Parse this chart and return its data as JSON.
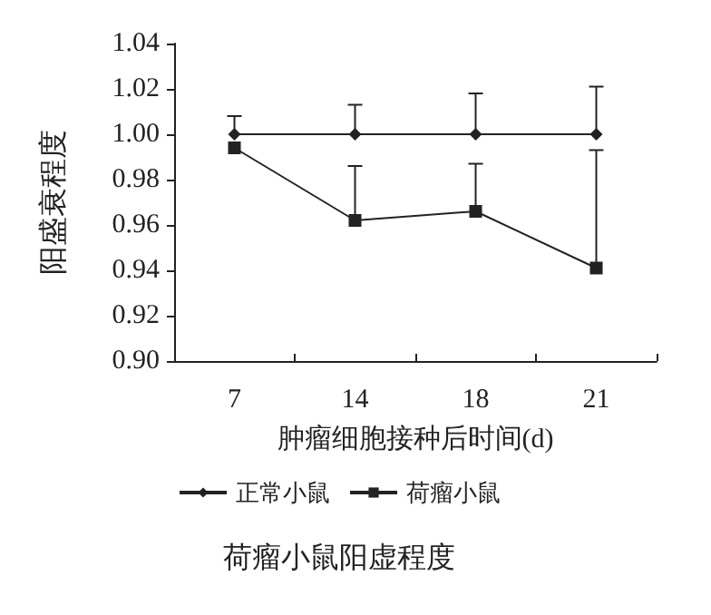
{
  "chart_data": {
    "type": "line",
    "title": "荷瘤小鼠阳虚程度",
    "xlabel": "肿瘤细胞接种后时间(d)",
    "ylabel": "阳盛衰程度",
    "categories": [
      "7",
      "14",
      "18",
      "21"
    ],
    "series": [
      {
        "name": "正常小鼠",
        "color": "#222222",
        "marker": "diamond",
        "values": [
          1.0,
          1.0,
          1.0,
          1.0
        ],
        "errors": [
          [
            1.0,
            1.008
          ],
          [
            1.0,
            1.013
          ],
          [
            1.0,
            1.018
          ],
          [
            1.0,
            1.021
          ]
        ]
      },
      {
        "name": "荷瘤小鼠",
        "color": "#222222",
        "marker": "square",
        "values": [
          0.994,
          0.962,
          0.966,
          0.941
        ],
        "errors": [
          null,
          [
            0.962,
            0.986
          ],
          [
            0.966,
            0.987
          ],
          [
            0.941,
            0.993
          ]
        ]
      }
    ],
    "ylim": [
      0.9,
      1.04
    ],
    "yticks": [
      {
        "value": 0.9,
        "label": "0.90"
      },
      {
        "value": 0.92,
        "label": "0.92"
      },
      {
        "value": 0.94,
        "label": "0.94"
      },
      {
        "value": 0.96,
        "label": "0.96"
      },
      {
        "value": 0.98,
        "label": "0.98"
      },
      {
        "value": 1.0,
        "label": "1.00"
      },
      {
        "value": 1.02,
        "label": "1.02"
      },
      {
        "value": 1.04,
        "label": "1.04"
      }
    ],
    "grid": false,
    "legend": "bottom",
    "line_style": "solid"
  }
}
